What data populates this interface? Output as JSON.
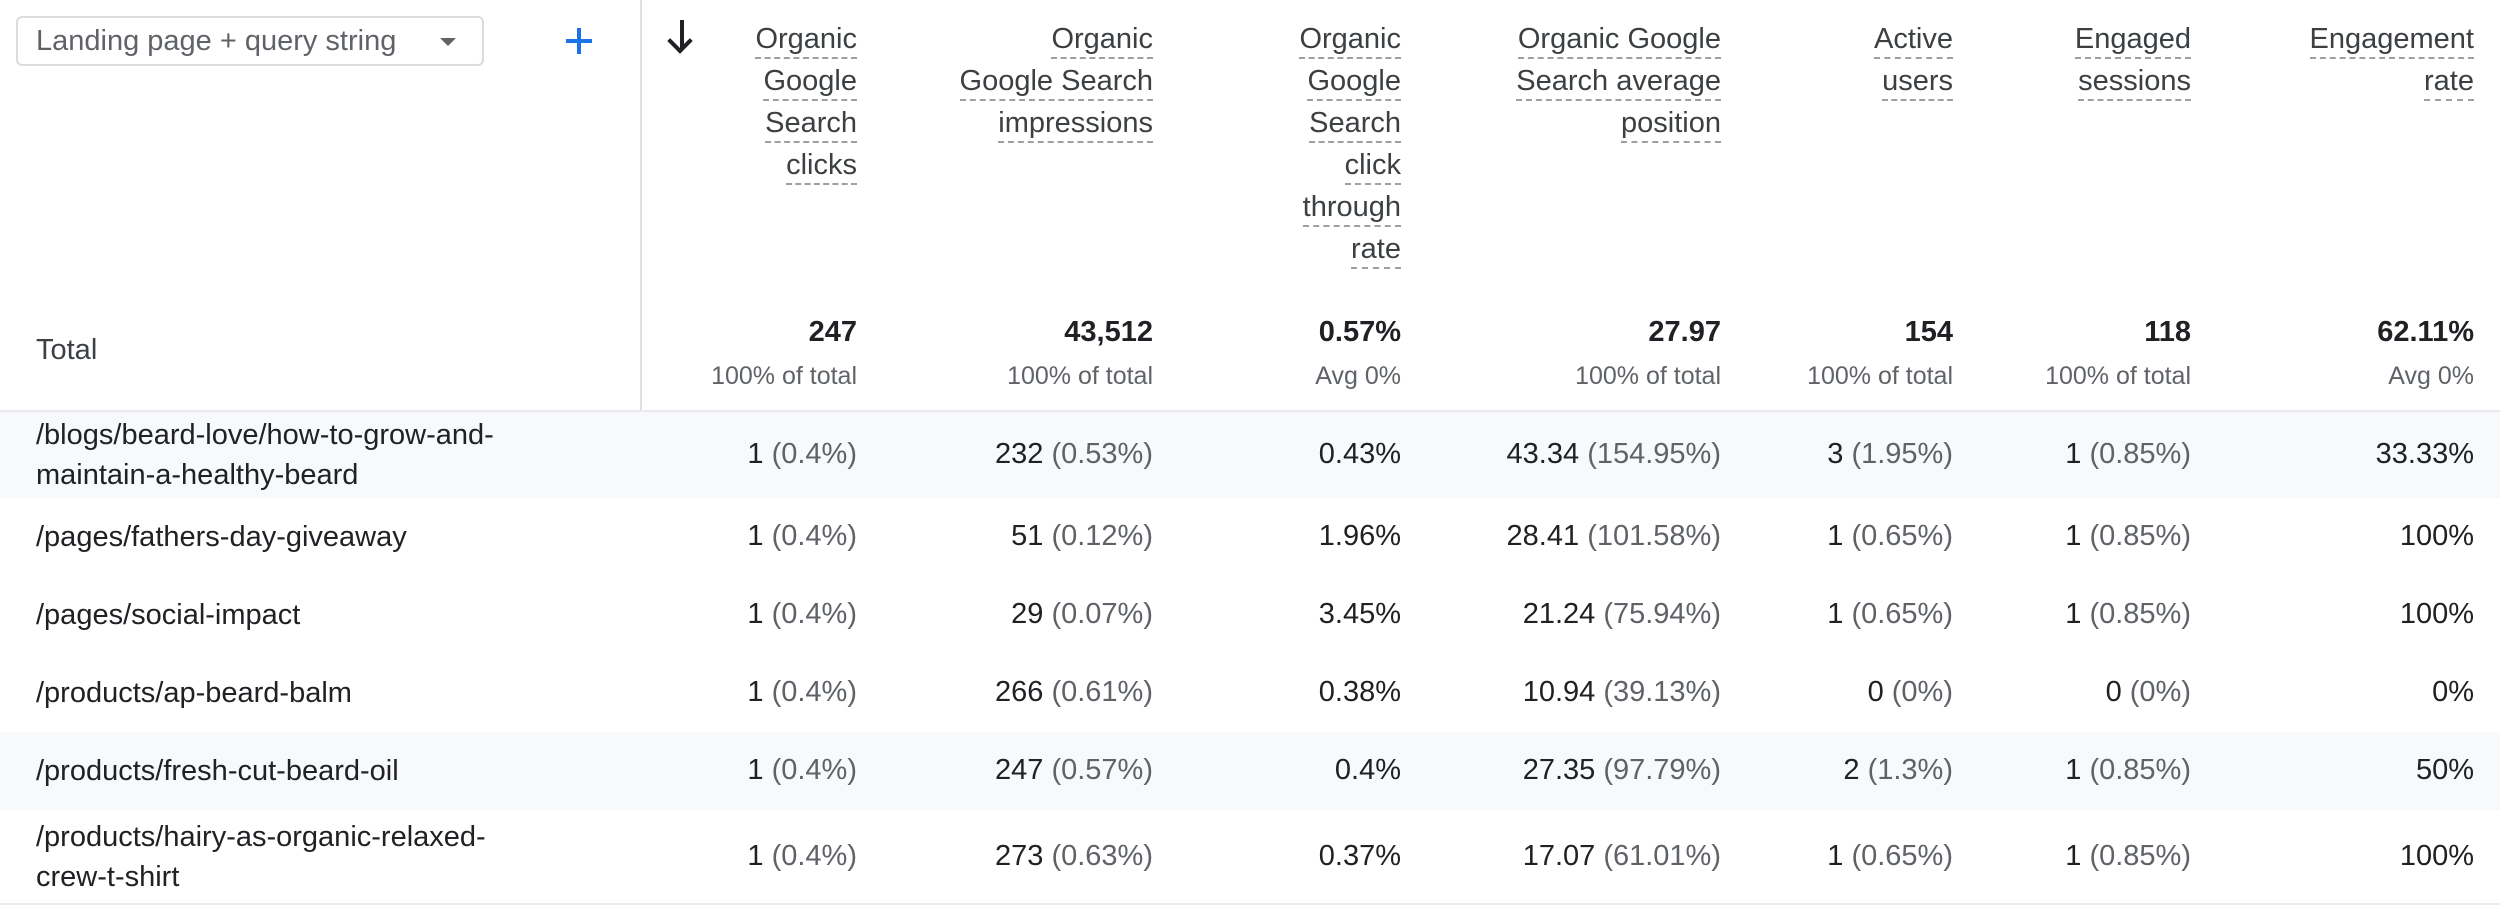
{
  "dimension_selector": {
    "label": "Landing page + query string"
  },
  "columns": [
    {
      "key": "clicks",
      "lines": [
        "Organic",
        "Google",
        "Search",
        "clicks"
      ]
    },
    {
      "key": "impressions",
      "lines": [
        "Organic",
        "Google Search",
        "impressions"
      ]
    },
    {
      "key": "ctr",
      "lines": [
        "Organic",
        "Google",
        "Search",
        "click",
        "through",
        "rate"
      ]
    },
    {
      "key": "position",
      "lines": [
        "Organic Google",
        "Search average",
        "position"
      ]
    },
    {
      "key": "active_users",
      "lines": [
        "Active",
        "users"
      ]
    },
    {
      "key": "engaged_sessions",
      "lines": [
        "Engaged",
        "sessions"
      ]
    },
    {
      "key": "engagement_rate",
      "lines": [
        "Engagement",
        "rate"
      ]
    }
  ],
  "total": {
    "label": "Total",
    "values": [
      "247",
      "43,512",
      "0.57%",
      "27.97",
      "154",
      "118",
      "62.11%"
    ],
    "subs": [
      "100% of total",
      "100% of total",
      "Avg 0%",
      "100% of total",
      "100% of total",
      "100% of total",
      "Avg 0%"
    ]
  },
  "rows": [
    {
      "label_lines": [
        "/blogs/beard-love/how-to-grow-and-",
        "maintain-a-healthy-beard"
      ],
      "cells": [
        [
          "1",
          "(0.4%)"
        ],
        [
          "232",
          "(0.53%)"
        ],
        [
          "0.43%",
          ""
        ],
        [
          "43.34",
          "(154.95%)"
        ],
        [
          "3",
          "(1.95%)"
        ],
        [
          "1",
          "(0.85%)"
        ],
        [
          "33.33%",
          ""
        ]
      ]
    },
    {
      "label_lines": [
        "/pages/fathers-day-giveaway"
      ],
      "cells": [
        [
          "1",
          "(0.4%)"
        ],
        [
          "51",
          "(0.12%)"
        ],
        [
          "1.96%",
          ""
        ],
        [
          "28.41",
          "(101.58%)"
        ],
        [
          "1",
          "(0.65%)"
        ],
        [
          "1",
          "(0.85%)"
        ],
        [
          "100%",
          ""
        ]
      ]
    },
    {
      "label_lines": [
        "/pages/social-impact"
      ],
      "cells": [
        [
          "1",
          "(0.4%)"
        ],
        [
          "29",
          "(0.07%)"
        ],
        [
          "3.45%",
          ""
        ],
        [
          "21.24",
          "(75.94%)"
        ],
        [
          "1",
          "(0.65%)"
        ],
        [
          "1",
          "(0.85%)"
        ],
        [
          "100%",
          ""
        ]
      ]
    },
    {
      "label_lines": [
        "/products/ap-beard-balm"
      ],
      "cells": [
        [
          "1",
          "(0.4%)"
        ],
        [
          "266",
          "(0.61%)"
        ],
        [
          "0.38%",
          ""
        ],
        [
          "10.94",
          "(39.13%)"
        ],
        [
          "0",
          "(0%)"
        ],
        [
          "0",
          "(0%)"
        ],
        [
          "0%",
          ""
        ]
      ]
    },
    {
      "label_lines": [
        "/products/fresh-cut-beard-oil"
      ],
      "cells": [
        [
          "1",
          "(0.4%)"
        ],
        [
          "247",
          "(0.57%)"
        ],
        [
          "0.4%",
          ""
        ],
        [
          "27.35",
          "(97.79%)"
        ],
        [
          "2",
          "(1.3%)"
        ],
        [
          "1",
          "(0.85%)"
        ],
        [
          "50%",
          ""
        ]
      ]
    },
    {
      "label_lines": [
        "/products/hairy-as-organic-relaxed-",
        "crew-t-shirt"
      ],
      "cells": [
        [
          "1",
          "(0.4%)"
        ],
        [
          "273",
          "(0.63%)"
        ],
        [
          "0.37%",
          ""
        ],
        [
          "17.07",
          "(61.01%)"
        ],
        [
          "1",
          "(0.65%)"
        ],
        [
          "1",
          "(0.85%)"
        ],
        [
          "100%",
          ""
        ]
      ]
    }
  ]
}
